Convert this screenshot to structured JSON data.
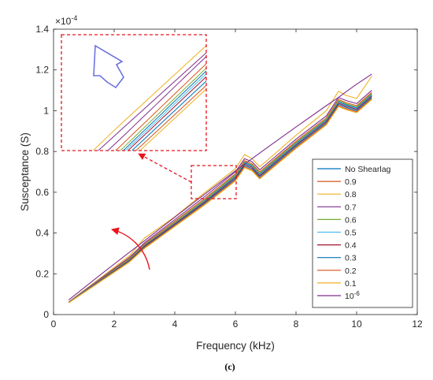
{
  "chart_data": {
    "type": "line",
    "xlabel": "Frequency (kHz)",
    "ylabel": "Susceptance (S)",
    "y_exponent": "×10",
    "y_exponent_power": "-4",
    "xlim": [
      0,
      12
    ],
    "ylim": [
      0,
      1.4
    ],
    "x_ticks": [
      "0",
      "2",
      "4",
      "6",
      "8",
      "10",
      "12"
    ],
    "y_ticks": [
      "0",
      "0.2",
      "0.4",
      "0.6",
      "0.8",
      "1",
      "1.2",
      "1.4"
    ],
    "x_tick_values": [
      0,
      2,
      4,
      6,
      8,
      10,
      12
    ],
    "y_tick_values": [
      0,
      0.2,
      0.4,
      0.6,
      0.8,
      1,
      1.2,
      1.4
    ],
    "legend_position": "right, lower-middle",
    "caption": "(c)",
    "x": [
      0.5,
      1.5,
      2.5,
      3.0,
      4.0,
      5.0,
      6.0,
      6.3,
      6.55,
      6.8,
      7.2,
      8.0,
      9.0,
      9.4,
      9.65,
      10.0,
      10.5
    ],
    "series": [
      {
        "name": "No Shearlag",
        "color": "#0072BD",
        "values": [
          0.06,
          0.165,
          0.27,
          0.34,
          0.45,
          0.56,
          0.68,
          0.745,
          0.73,
          0.69,
          0.74,
          0.84,
          0.955,
          1.045,
          1.03,
          1.015,
          1.08
        ]
      },
      {
        "name": "0.9",
        "color": "#D95319",
        "values": [
          0.061,
          0.168,
          0.275,
          0.346,
          0.458,
          0.57,
          0.69,
          0.755,
          0.74,
          0.7,
          0.75,
          0.85,
          0.965,
          1.055,
          1.04,
          1.025,
          1.09
        ]
      },
      {
        "name": "0.8",
        "color": "#EDB120",
        "values": [
          0.062,
          0.175,
          0.288,
          0.375,
          0.48,
          0.6,
          0.715,
          0.785,
          0.765,
          0.725,
          0.775,
          0.88,
          1.0,
          1.095,
          1.075,
          1.06,
          1.17
        ]
      },
      {
        "name": "0.7",
        "color": "#7E2F8E",
        "values": [
          0.061,
          0.17,
          0.28,
          0.352,
          0.466,
          0.58,
          0.7,
          0.765,
          0.75,
          0.71,
          0.76,
          0.86,
          0.975,
          1.065,
          1.05,
          1.035,
          1.1
        ]
      },
      {
        "name": "0.6",
        "color": "#77AC30",
        "values": [
          0.06,
          0.166,
          0.272,
          0.342,
          0.453,
          0.564,
          0.684,
          0.749,
          0.734,
          0.694,
          0.744,
          0.844,
          0.959,
          1.049,
          1.034,
          1.019,
          1.084
        ]
      },
      {
        "name": "0.5",
        "color": "#4DBEEE",
        "values": [
          0.06,
          0.164,
          0.268,
          0.338,
          0.448,
          0.557,
          0.676,
          0.741,
          0.726,
          0.686,
          0.736,
          0.836,
          0.951,
          1.041,
          1.026,
          1.011,
          1.076
        ]
      },
      {
        "name": "0.4",
        "color": "#A2142F",
        "values": [
          0.059,
          0.163,
          0.266,
          0.336,
          0.445,
          0.554,
          0.672,
          0.737,
          0.722,
          0.682,
          0.732,
          0.832,
          0.947,
          1.037,
          1.022,
          1.007,
          1.072
        ]
      },
      {
        "name": "0.3",
        "color": "#0072BD",
        "values": [
          0.059,
          0.161,
          0.263,
          0.332,
          0.44,
          0.549,
          0.666,
          0.731,
          0.716,
          0.676,
          0.726,
          0.826,
          0.941,
          1.031,
          1.016,
          1.001,
          1.066
        ]
      },
      {
        "name": "0.2",
        "color": "#D95319",
        "values": [
          0.058,
          0.159,
          0.26,
          0.328,
          0.436,
          0.544,
          0.66,
          0.725,
          0.71,
          0.67,
          0.72,
          0.82,
          0.935,
          1.025,
          1.01,
          0.995,
          1.06
        ]
      },
      {
        "name": "0.1",
        "color": "#EDB120",
        "values": [
          0.058,
          0.157,
          0.257,
          0.324,
          0.432,
          0.539,
          0.655,
          0.72,
          0.705,
          0.665,
          0.715,
          0.815,
          0.93,
          1.02,
          1.005,
          0.99,
          1.055
        ]
      },
      {
        "name": "10",
        "name_sup": "-6",
        "color": "#7E2F8E",
        "values": [
          0.072,
          0.19,
          0.305,
          0.362,
          0.478,
          0.592,
          0.705,
          0.738,
          0.765,
          0.792,
          0.835,
          0.92,
          1.025,
          1.065,
          1.093,
          1.13,
          1.18
        ]
      }
    ],
    "inset_zoom_region": {
      "x": [
        4.4,
        6.0
      ],
      "y": [
        0.57,
        0.73
      ]
    }
  }
}
